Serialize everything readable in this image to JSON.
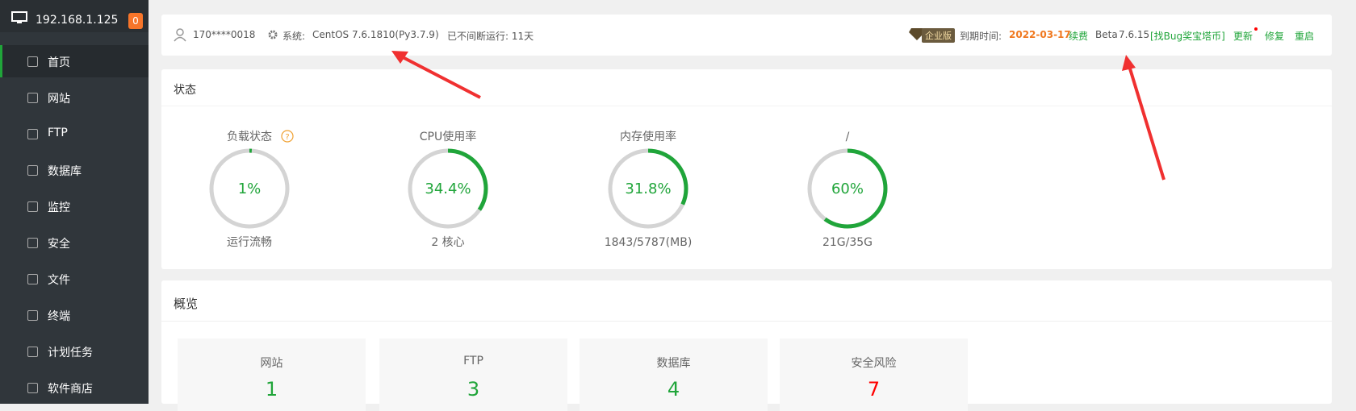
{
  "sidebar": {
    "host": "192.168.1.125",
    "badge": "0",
    "menu": [
      "首页",
      "网站",
      "FTP",
      "数据库",
      "监控",
      "安全",
      "文件",
      "终端",
      "计划任务",
      "软件商店"
    ]
  },
  "header": {
    "user": "170****0018",
    "system_label": "系统:",
    "system": "CentOS 7.6.1810(Py3.7.9)",
    "uptime": "已不间断运行: 11天",
    "edition": "企业版",
    "expire_label": "到期时间:",
    "expire_date": "2022-03-17",
    "renew": "续费",
    "beta": "Beta",
    "version": "7.6.15",
    "bug": "[找Bug奖宝塔币]",
    "update": "更新",
    "repair": "修复",
    "restart": "重启"
  },
  "status": {
    "title": "状态",
    "gauges": [
      {
        "title": "负载状态",
        "value": 1,
        "value_label": "1%",
        "caption": "运行流畅"
      },
      {
        "title": "CPU使用率",
        "value": 34.4,
        "value_label": "34.4%",
        "caption": "2 核心"
      },
      {
        "title": "内存使用率",
        "value": 31.8,
        "value_label": "31.8%",
        "caption": "1843/5787(MB)"
      },
      {
        "title": "/",
        "value": 60,
        "value_label": "60%",
        "caption": "21G/35G"
      }
    ]
  },
  "overview": {
    "title": "概览",
    "tiles": [
      {
        "label": "网站",
        "value": 1
      },
      {
        "label": "FTP",
        "value": 3
      },
      {
        "label": "数据库",
        "value": 4
      },
      {
        "label": "安全风险",
        "value": 7
      }
    ]
  }
}
